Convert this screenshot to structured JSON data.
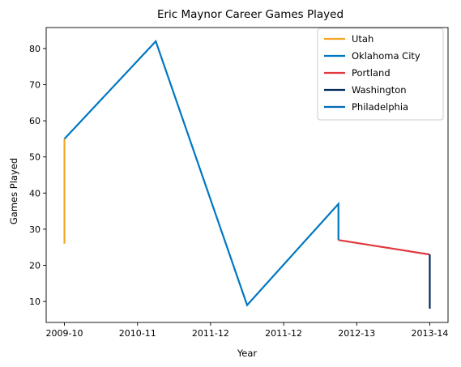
{
  "chart_data": {
    "type": "line",
    "title": "Eric Maynor Career Games Played",
    "xlabel": "Year",
    "ylabel": "Games Played",
    "x_tick_labels": [
      "2009-10",
      "2010-11",
      "2011-12",
      "2011-12",
      "2012-13",
      "2013-14"
    ],
    "y_ticks": [
      10,
      20,
      30,
      40,
      50,
      60,
      70,
      80
    ],
    "ylim": [
      4.2,
      85.8
    ],
    "grid": false,
    "legend_position": "top-right",
    "series": [
      {
        "name": "Utah",
        "color": "#f5a623",
        "points": [
          {
            "x": 0,
            "y": 26
          },
          {
            "x": 0,
            "y": 55
          }
        ]
      },
      {
        "name": "Oklahoma City",
        "color": "#0077c0",
        "points": [
          {
            "x": 0,
            "y": 55
          },
          {
            "x": 1.25,
            "y": 82
          },
          {
            "x": 2.5,
            "y": 9
          },
          {
            "x": 3.75,
            "y": 37
          },
          {
            "x": 3.75,
            "y": 27
          }
        ]
      },
      {
        "name": "Portland",
        "color": "#e03a3e",
        "points": [
          {
            "x": 3.75,
            "y": 27
          },
          {
            "x": 5,
            "y": 23
          }
        ]
      },
      {
        "name": "Washington",
        "color": "#002b5c",
        "points": [
          {
            "x": 5,
            "y": 23
          },
          {
            "x": 5,
            "y": 8
          }
        ]
      },
      {
        "name": "Philadelphia",
        "color": "#006bb6",
        "points": []
      }
    ]
  }
}
